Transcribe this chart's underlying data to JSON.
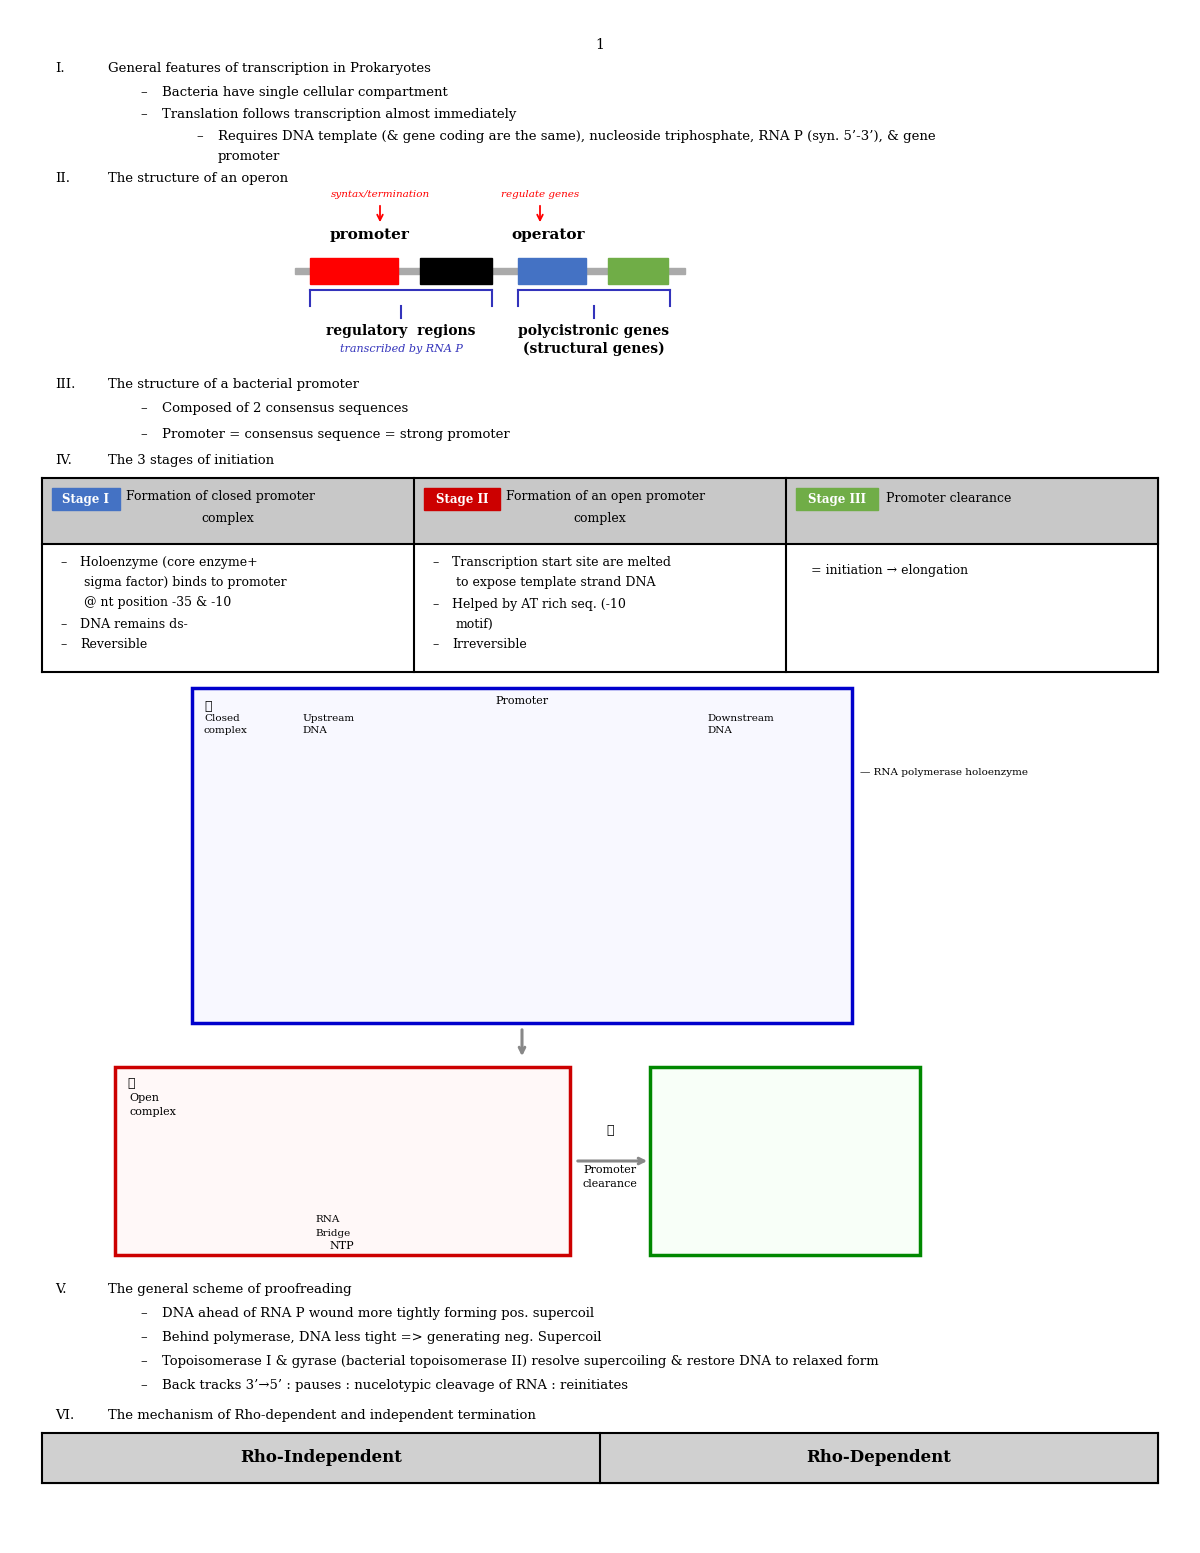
{
  "page_number": "1",
  "bg_color": "#ffffff",
  "sec1_num": "I.",
  "sec1_title": "General features of transcription in Prokaryotes",
  "sec1_b1": "Bacteria have single cellular compartment",
  "sec1_b2": "Translation follows transcription almost immediately",
  "sec1_b3a": "Requires DNA template (& gene coding are the same), nucleoside triphosphate, RNA P (syn. 5’-3’), & gene",
  "sec1_b3b": "promoter",
  "sec2_num": "II.",
  "sec2_title": "The structure of an operon",
  "operon_lbl1": "syntax/termination",
  "operon_lbl2": "regulate genes",
  "operon_promoter": "promoter",
  "operon_operator": "operator",
  "operon_reg": "regulatory  regions",
  "operon_rna": "transcribed by RNA P",
  "operon_poly1": "polycistronic genes",
  "operon_poly2": "(structural genes)",
  "sec3_num": "III.",
  "sec3_title": "The structure of a bacterial promoter",
  "sec3_b1": "Composed of 2 consensus sequences",
  "sec3_b2": "Promoter = consensus sequence = strong promoter",
  "sec4_num": "IV.",
  "sec4_title": "The 3 stages of initiation",
  "s1_lbl": "Stage I",
  "s1_color": "#4472c4",
  "s1_head1": "Formation of closed promoter",
  "s1_head2": "complex",
  "s2_lbl": "Stage II",
  "s2_color": "#cc0000",
  "s2_head1": "Formation of an open promoter",
  "s2_head2": "complex",
  "s3_lbl": "Stage III",
  "s3_color": "#70ad47",
  "s3_head1": "Promoter clearance",
  "s1_body": [
    "Holoenzyme (core enzyme+",
    "sigma factor) binds to promoter",
    "@ nt position -35 & -10",
    "DNA remains ds-",
    "Reversible"
  ],
  "s2_body": [
    "Transcription start site are melted",
    "to expose template strand DNA",
    "Helped by AT rich seq. (-10",
    "motif)",
    "Irreversible"
  ],
  "s3_body": "= initiation → elongation",
  "tbl_hdr_bg": "#c8c8c8",
  "sec5_num": "V.",
  "sec5_title": "The general scheme of proofreading",
  "sec5_b1": "DNA ahead of RNA P wound more tightly forming pos. supercoil",
  "sec5_b2": "Behind polymerase, DNA less tight => generating neg. Supercoil",
  "sec5_b3": "Topoisomerase I & gyrase (bacterial topoisomerase II) resolve supercoiling & restore DNA to relaxed form",
  "sec5_b4": "Back tracks 3’→5’ : pauses : nucelotypic cleavage of RNA : reinitiates",
  "sec6_num": "VI.",
  "sec6_title": "The mechanism of Rho-dependent and independent termination",
  "rho_ind": "Rho-Independent",
  "rho_dep": "Rho-Dependent",
  "rho_bg": "#d0d0d0",
  "blue_box_color": "#0000cc",
  "red_box_color": "#cc0000",
  "green_box_color": "#008800"
}
